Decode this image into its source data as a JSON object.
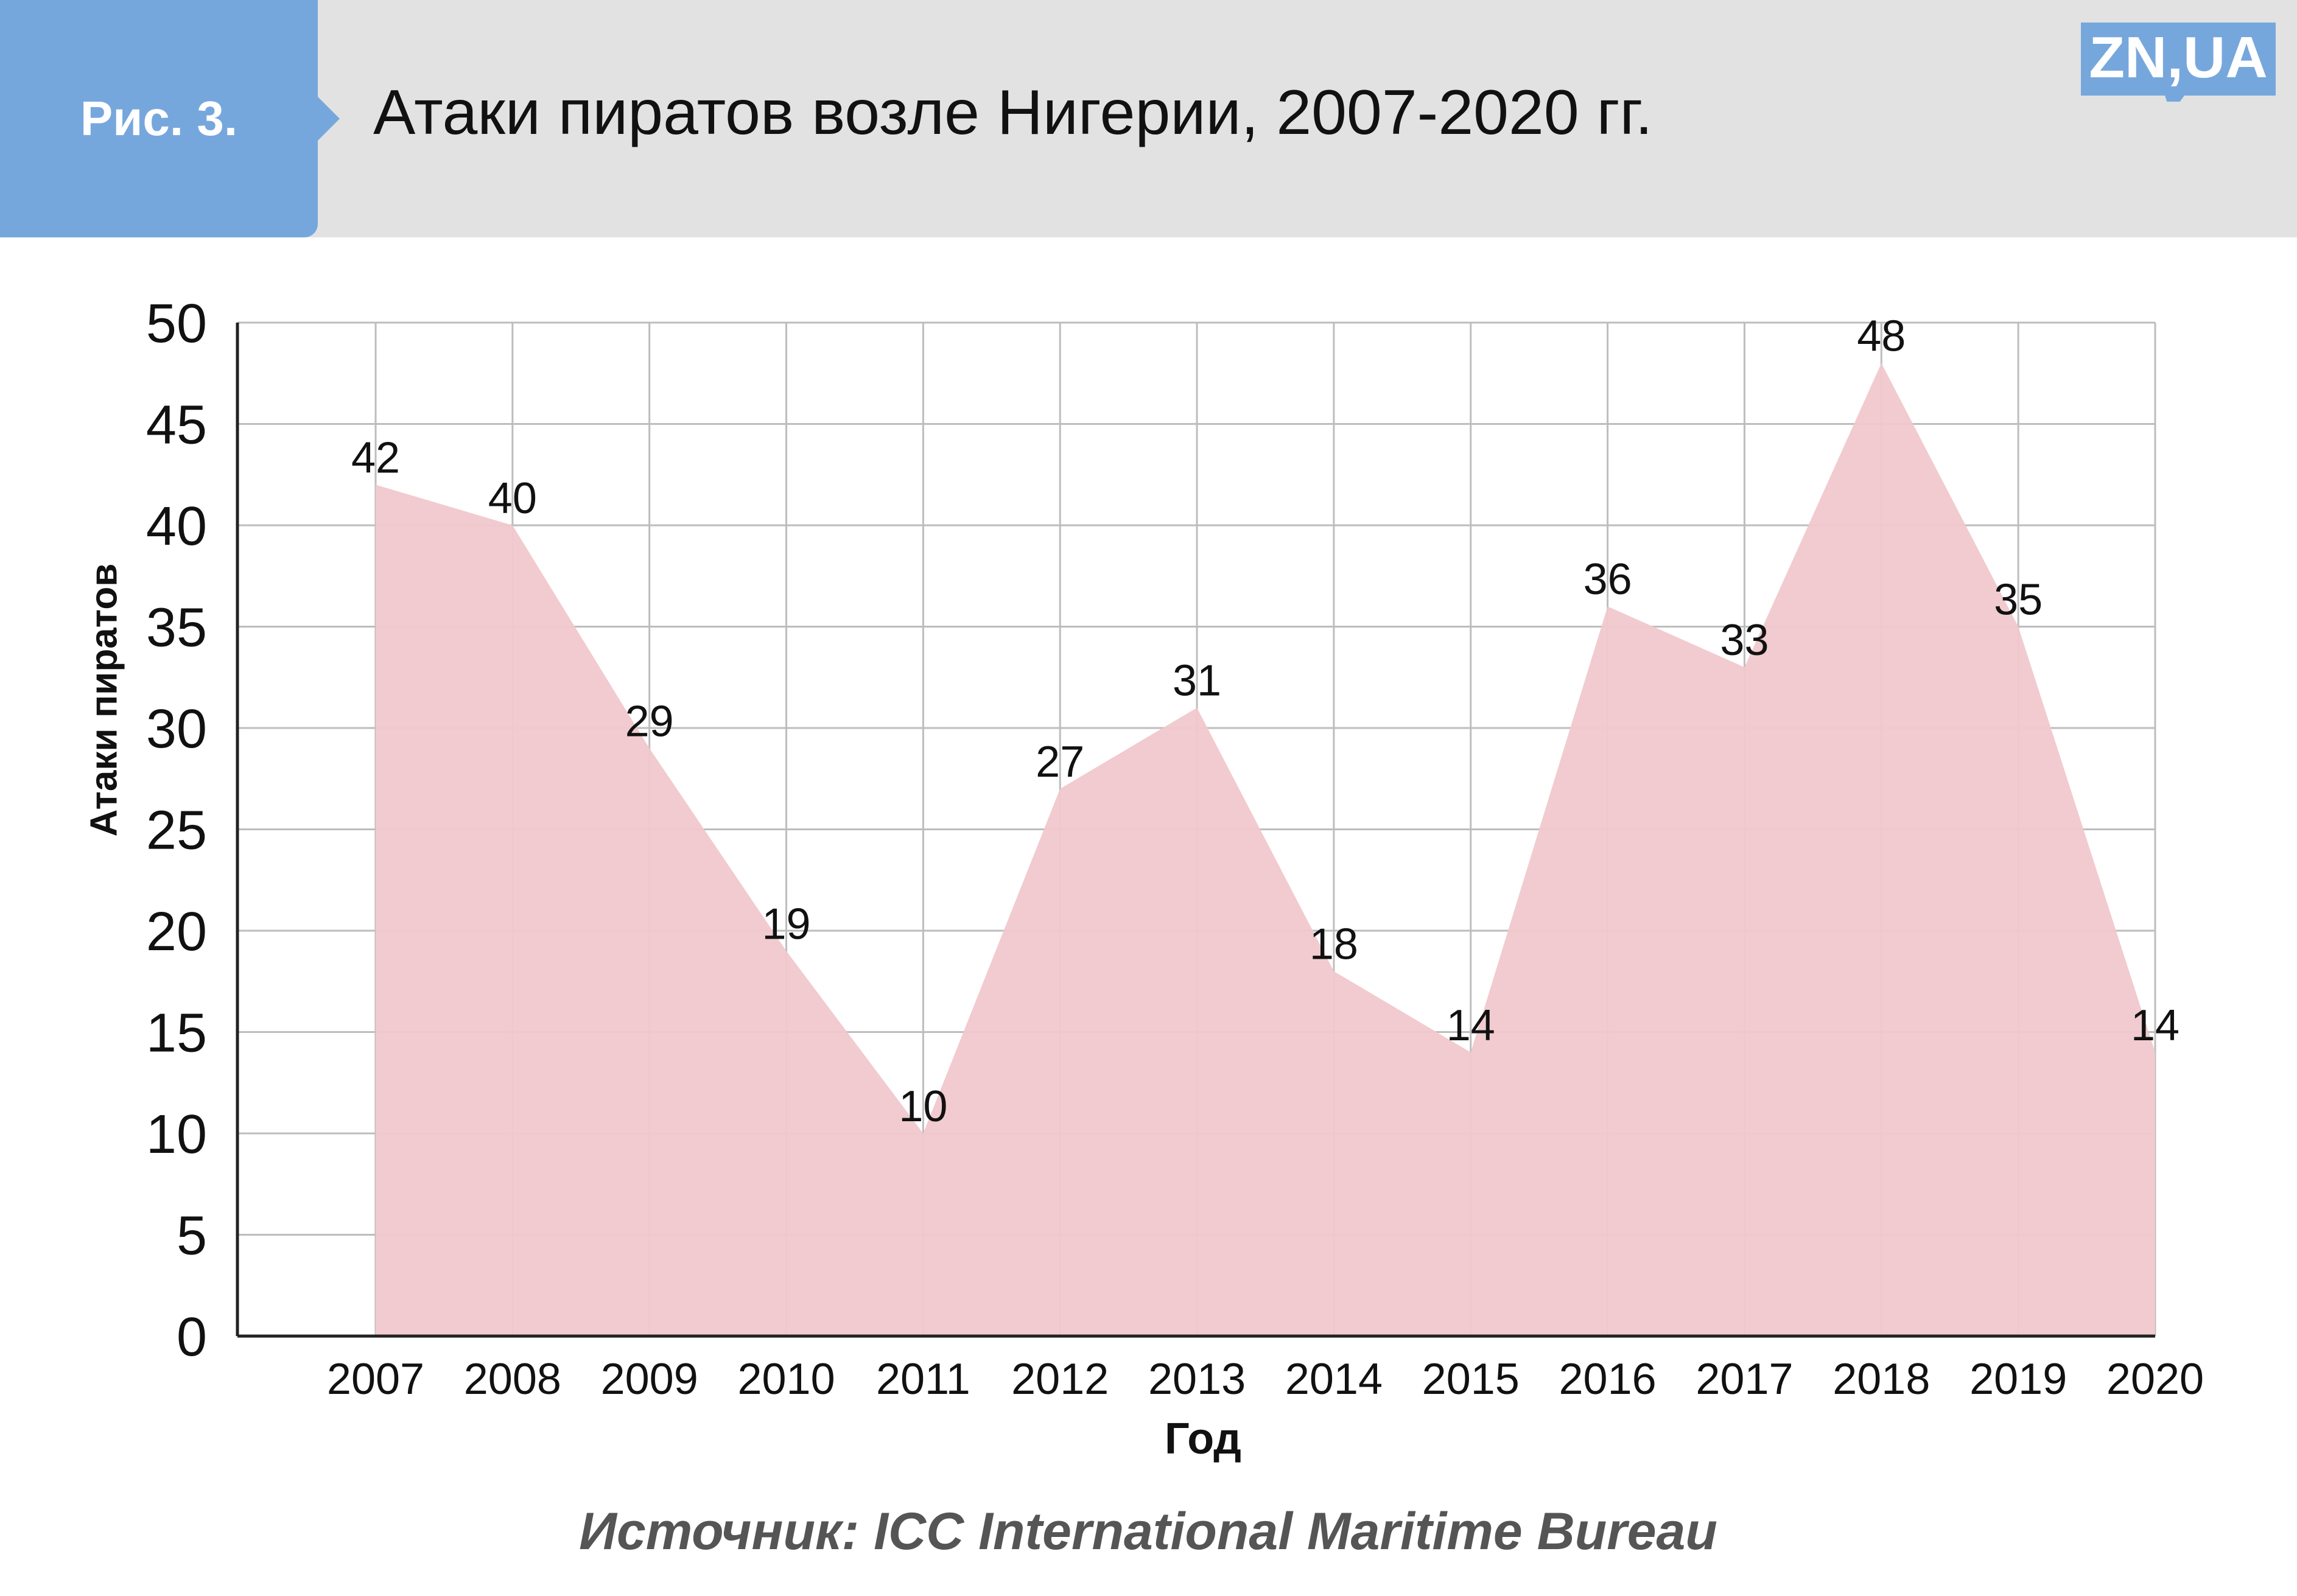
{
  "header": {
    "figure_label": "Рис. 3.",
    "title": "Атаки пиратов возле Нигерии, 2007-2020 гг.",
    "logo_text": "ZN,UA"
  },
  "colors": {
    "header_bg": "#e2e2e2",
    "badge": "#76a7dc",
    "area_fill": "#f0c8cc",
    "grid": "#bdbdbd",
    "axis": "#222222",
    "source_text": "#555555"
  },
  "chart_data": {
    "type": "area",
    "x": [
      "2007",
      "2008",
      "2009",
      "2010",
      "2011",
      "2012",
      "2013",
      "2014",
      "2015",
      "2016",
      "2017",
      "2018",
      "2019",
      "2020"
    ],
    "series": [
      {
        "values": [
          42,
          40,
          29,
          19,
          10,
          27,
          31,
          18,
          14,
          36,
          33,
          48,
          35,
          14
        ]
      }
    ],
    "data_labels": [
      "42",
      "40",
      "29",
      "19",
      "10",
      "27",
      "31",
      "18",
      "14",
      "36",
      "33",
      "48",
      "35",
      "14"
    ],
    "xlabel": "Год",
    "ylabel": "Атаки пиратов",
    "ylim": [
      0,
      50
    ],
    "yticks": [
      "0",
      "5",
      "10",
      "15",
      "20",
      "25",
      "30",
      "35",
      "40",
      "45",
      "50"
    ],
    "grid": true,
    "source": "Источник: ICC International Maritime Bureau"
  }
}
